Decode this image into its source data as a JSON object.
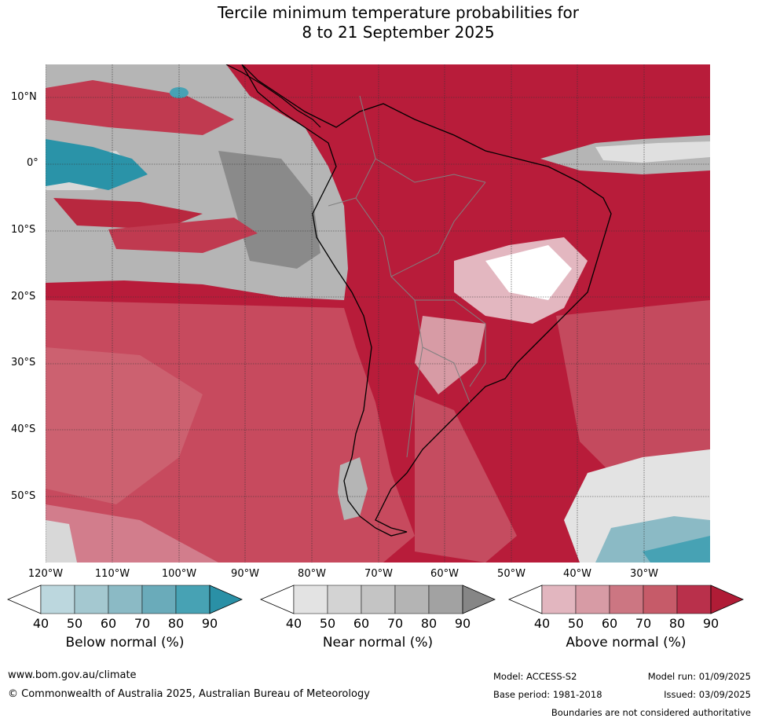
{
  "title": {
    "line1": "Tercile minimum temperature probabilities for",
    "line2": "8 to 21 September 2025"
  },
  "map": {
    "lat_labels": [
      "10°N",
      "0°",
      "10°S",
      "20°S",
      "30°S",
      "40°S",
      "50°S"
    ],
    "lon_labels": [
      "120°W",
      "110°W",
      "100°W",
      "90°W",
      "80°W",
      "70°W",
      "60°W",
      "50°W",
      "40°W",
      "30°W"
    ],
    "colors": {
      "above_base": "#b81c3a",
      "above_mid": "#c74a5e",
      "above_light": "#d8889a",
      "near_grey": "#b5b5b5",
      "near_dark": "#8a8a8a",
      "below_teal": "#2a93a8",
      "coast": "#000000",
      "border": "#808080"
    }
  },
  "colorbars": [
    {
      "label": "Below normal (%)",
      "ticks": [
        "40",
        "50",
        "60",
        "70",
        "80",
        "90"
      ],
      "colors": [
        "#bcd7de",
        "#a4c8d0",
        "#8bbac5",
        "#6aabba",
        "#47a2b4",
        "#2a90a6"
      ]
    },
    {
      "label": "Near normal (%)",
      "ticks": [
        "40",
        "50",
        "60",
        "70",
        "80",
        "90"
      ],
      "colors": [
        "#e3e3e3",
        "#d3d3d3",
        "#c4c4c4",
        "#b4b4b4",
        "#a2a2a2",
        "#868686"
      ]
    },
    {
      "label": "Above normal (%)",
      "ticks": [
        "40",
        "50",
        "60",
        "70",
        "80",
        "90"
      ],
      "colors": [
        "#e2b6bf",
        "#d79ba5",
        "#cc7682",
        "#c65b69",
        "#b9304b",
        "#b01c36"
      ]
    }
  ],
  "footer": {
    "website": "www.bom.gov.au/climate",
    "copyright": "© Commonwealth of Australia 2025, Australian Bureau of Meteorology",
    "model": "Model: ACCESS-S2",
    "model_run": "Model run: 01/09/2025",
    "base_period": "Base period: 1981-2018",
    "issued": "Issued: 03/09/2025",
    "disclaimer": "Boundaries are not considered authoritative"
  }
}
